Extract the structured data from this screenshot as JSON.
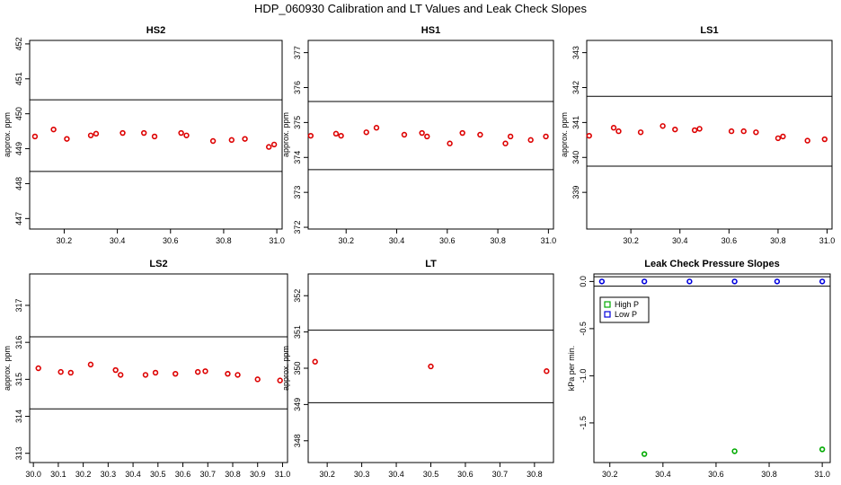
{
  "title": "HDP_060930  Calibration and LT Values and Leak Check Slopes",
  "chart_data": [
    {
      "type": "scatter",
      "title": "HS2",
      "ylabel": "approx. ppm",
      "xlim": [
        30.07,
        31.02
      ],
      "ylim": [
        446.7,
        452.1
      ],
      "xticks": [
        "30.2",
        "30.4",
        "30.6",
        "30.8",
        "31.0"
      ],
      "yticks": [
        "447",
        "448",
        "449",
        "450",
        "451",
        "452"
      ],
      "hlines": [
        450.4,
        448.35
      ],
      "series": [
        {
          "color": "#dd0000",
          "x": [
            30.09,
            30.16,
            30.21,
            30.3,
            30.32,
            30.42,
            30.5,
            30.54,
            30.64,
            30.66,
            30.76,
            30.83,
            30.88,
            30.97,
            30.99
          ],
          "y": [
            449.35,
            449.55,
            449.28,
            449.38,
            449.43,
            449.45,
            449.45,
            449.35,
            449.45,
            449.38,
            449.22,
            449.25,
            449.28,
            449.05,
            449.12
          ]
        }
      ]
    },
    {
      "type": "scatter",
      "title": "HS1",
      "ylabel": "approx. ppm",
      "xlim": [
        30.05,
        31.02
      ],
      "ylim": [
        371.95,
        377.35
      ],
      "xticks": [
        "30.2",
        "30.4",
        "30.6",
        "30.8",
        "31.0"
      ],
      "yticks": [
        "372",
        "373",
        "374",
        "375",
        "376",
        "377"
      ],
      "hlines": [
        375.6,
        373.65
      ],
      "series": [
        {
          "color": "#dd0000",
          "x": [
            30.06,
            30.16,
            30.18,
            30.28,
            30.32,
            30.43,
            30.5,
            30.52,
            30.61,
            30.66,
            30.73,
            30.83,
            30.85,
            30.93,
            30.99
          ],
          "y": [
            374.62,
            374.68,
            374.62,
            374.72,
            374.85,
            374.65,
            374.7,
            374.6,
            374.4,
            374.7,
            374.65,
            374.4,
            374.6,
            374.5,
            374.6
          ]
        }
      ]
    },
    {
      "type": "scatter",
      "title": "LS1",
      "ylabel": "approx. ppm",
      "xlim": [
        30.02,
        31.02
      ],
      "ylim": [
        337.95,
        343.35
      ],
      "xticks": [
        "30.2",
        "30.4",
        "30.6",
        "30.8",
        "31.0"
      ],
      "yticks": [
        "339",
        "340",
        "341",
        "342",
        "343"
      ],
      "hlines": [
        341.75,
        339.75
      ],
      "series": [
        {
          "color": "#dd0000",
          "x": [
            30.03,
            30.13,
            30.15,
            30.24,
            30.33,
            30.38,
            30.46,
            30.48,
            30.61,
            30.66,
            30.71,
            30.8,
            30.82,
            30.92,
            30.99
          ],
          "y": [
            340.62,
            340.85,
            340.75,
            340.72,
            340.9,
            340.8,
            340.78,
            340.82,
            340.75,
            340.75,
            340.72,
            340.55,
            340.6,
            340.48,
            340.52
          ]
        }
      ]
    },
    {
      "type": "scatter",
      "title": "LS2",
      "ylabel": "approx. ppm",
      "xlim": [
        29.985,
        31.02
      ],
      "ylim": [
        312.75,
        317.85
      ],
      "xticks": [
        "30.0",
        "30.1",
        "30.2",
        "30.3",
        "30.4",
        "30.5",
        "30.6",
        "30.7",
        "30.8",
        "30.9",
        "31.0"
      ],
      "yticks": [
        "313",
        "314",
        "315",
        "316",
        "317"
      ],
      "hlines": [
        316.15,
        314.2
      ],
      "series": [
        {
          "color": "#dd0000",
          "x": [
            30.02,
            30.11,
            30.15,
            30.23,
            30.33,
            30.35,
            30.45,
            30.49,
            30.57,
            30.66,
            30.69,
            30.78,
            30.82,
            30.9,
            30.99
          ],
          "y": [
            315.3,
            315.2,
            315.18,
            315.4,
            315.25,
            315.12,
            315.12,
            315.18,
            315.15,
            315.2,
            315.22,
            315.15,
            315.12,
            315.0,
            314.97
          ]
        }
      ]
    },
    {
      "type": "scatter",
      "title": "LT",
      "ylabel": "approx. ppm",
      "xlim": [
        30.145,
        30.855
      ],
      "ylim": [
        347.4,
        352.6
      ],
      "xticks": [
        "30.2",
        "30.3",
        "30.4",
        "30.5",
        "30.6",
        "30.7",
        "30.8"
      ],
      "yticks": [
        "348",
        "349",
        "350",
        "351",
        "352"
      ],
      "hlines": [
        351.05,
        349.05
      ],
      "series": [
        {
          "color": "#dd0000",
          "x": [
            30.165,
            30.5,
            30.835
          ],
          "y": [
            350.18,
            350.05,
            349.92
          ]
        }
      ]
    },
    {
      "type": "scatter",
      "title": "Leak Check Pressure Slopes",
      "ylabel": "kPa per min.",
      "xlim": [
        30.14,
        31.03
      ],
      "ylim": [
        -1.92,
        0.08
      ],
      "xticks": [
        "30.2",
        "30.4",
        "30.6",
        "30.8",
        "31.0"
      ],
      "yticks": [
        "0.0",
        "-0.5",
        "-1.0",
        "-1.5"
      ],
      "hlines": [
        0.05,
        -0.05
      ],
      "legend": {
        "position": "top-left",
        "entries": [
          "High P",
          "Low P"
        ]
      },
      "series": [
        {
          "name": "High P",
          "color": "#00aa00",
          "x": [
            30.33,
            30.67,
            31.0
          ],
          "y": [
            -1.83,
            -1.8,
            -1.78
          ]
        },
        {
          "name": "Low P",
          "color": "#0000dd",
          "x": [
            30.17,
            30.33,
            30.5,
            30.67,
            30.83,
            31.0
          ],
          "y": [
            0.0,
            0.0,
            0.0,
            0.0,
            0.0,
            0.0
          ]
        }
      ]
    }
  ]
}
